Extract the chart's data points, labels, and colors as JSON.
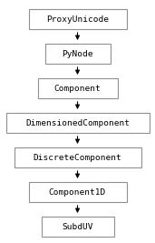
{
  "nodes": [
    "ProxyUnicode",
    "PyNode",
    "Component",
    "DimensionedComponent",
    "DiscreteComponent",
    "Component1D",
    "SubdUV"
  ],
  "background_color": "#ffffff",
  "box_facecolor": "#ffffff",
  "box_edgecolor": "#909090",
  "text_color": "#000000",
  "arrow_color": "#000000",
  "font_size": 6.8,
  "fig_width": 1.71,
  "fig_height": 2.67,
  "dpi": 100
}
